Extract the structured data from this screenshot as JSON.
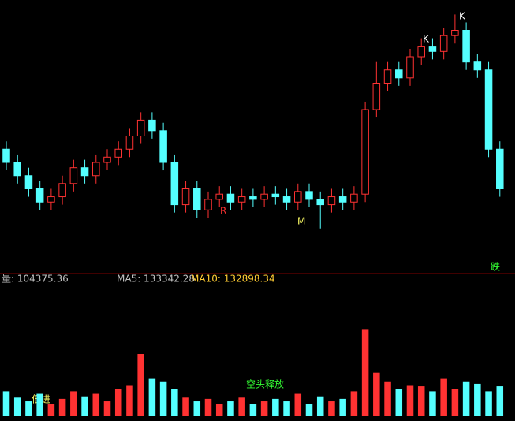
{
  "chart_data": {
    "type": "candlestick",
    "open": [
      45,
      40,
      35,
      30,
      25,
      27,
      32,
      38,
      35,
      40,
      42,
      45,
      50,
      56,
      52,
      40,
      24,
      30,
      22,
      26,
      28,
      25,
      27,
      26,
      28,
      27,
      25,
      29,
      26,
      24,
      27,
      25,
      28,
      60,
      70,
      75,
      72,
      80,
      84,
      82,
      88,
      90,
      78,
      75,
      45
    ],
    "high": [
      48,
      43,
      38,
      33,
      30,
      35,
      41,
      41,
      43,
      45,
      48,
      53,
      59,
      59,
      55,
      43,
      33,
      33,
      29,
      31,
      31,
      30,
      30,
      31,
      31,
      30,
      32,
      32,
      29,
      30,
      30,
      31,
      63,
      78,
      78,
      78,
      83,
      87,
      87,
      91,
      96,
      93,
      81,
      78,
      48
    ],
    "low": [
      37,
      32,
      27,
      22,
      22,
      24,
      29,
      32,
      32,
      37,
      39,
      42,
      47,
      49,
      37,
      21,
      21,
      19,
      19,
      23,
      22,
      22,
      23,
      23,
      24,
      22,
      22,
      23,
      15,
      21,
      22,
      22,
      25,
      57,
      67,
      69,
      69,
      77,
      79,
      79,
      85,
      75,
      72,
      42,
      27
    ],
    "close": [
      40,
      35,
      30,
      25,
      27,
      32,
      38,
      35,
      40,
      42,
      45,
      50,
      56,
      52,
      40,
      24,
      30,
      22,
      26,
      28,
      25,
      27,
      26,
      28,
      27,
      25,
      29,
      26,
      24,
      27,
      25,
      28,
      60,
      70,
      75,
      72,
      80,
      84,
      82,
      88,
      90,
      78,
      75,
      45,
      30
    ],
    "volume": [
      20,
      15,
      12,
      18,
      10,
      14,
      20,
      16,
      18,
      12,
      22,
      25,
      50,
      30,
      28,
      22,
      15,
      12,
      14,
      10,
      12,
      15,
      10,
      12,
      14,
      12,
      18,
      10,
      16,
      12,
      14,
      20,
      70,
      35,
      28,
      22,
      25,
      24,
      20,
      30,
      22,
      28,
      26,
      20,
      24
    ],
    "up_color": "#ff3232",
    "down_color": "#54ffff",
    "ylim": [
      0,
      100
    ],
    "volume_lim": [
      0,
      100
    ],
    "volume_label": "量: 104375.36",
    "ma5_label": "MA5: 133342.28",
    "ma10_label": "MA10: 132898.34",
    "annotations": {
      "fall": "跌",
      "release": "空头释放",
      "low_in": "低进",
      "k1": "K",
      "k2": "K",
      "r": "R",
      "m": "M"
    }
  }
}
